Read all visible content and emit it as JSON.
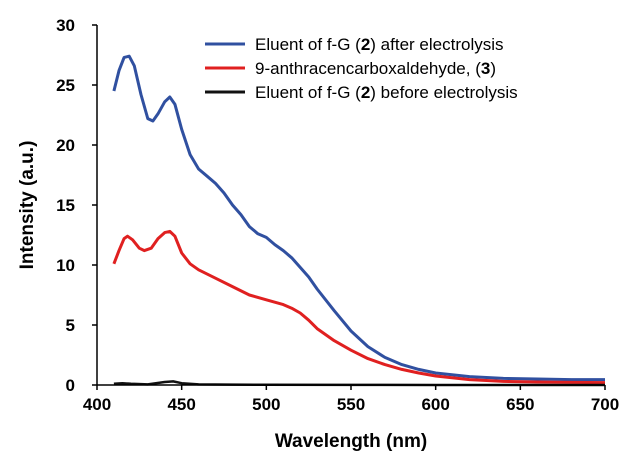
{
  "chart_data": {
    "type": "line",
    "xlabel": "Wavelength (nm)",
    "ylabel": "Intensity (a.u.)",
    "xlim": [
      400,
      700
    ],
    "ylim": [
      0,
      30
    ],
    "xticks": [
      400,
      450,
      500,
      550,
      600,
      650,
      700
    ],
    "yticks": [
      0,
      5,
      10,
      15,
      20,
      25,
      30
    ],
    "grid": false,
    "legend_position": "top-right",
    "series": [
      {
        "name_parts": [
          "Eluent of f-G (",
          "2",
          ") after electrolysis"
        ],
        "color": "#3050a0",
        "points": [
          [
            410,
            24.5
          ],
          [
            413,
            26.2
          ],
          [
            416,
            27.3
          ],
          [
            419,
            27.4
          ],
          [
            422,
            26.6
          ],
          [
            426,
            24.2
          ],
          [
            430,
            22.2
          ],
          [
            433,
            22.0
          ],
          [
            436,
            22.6
          ],
          [
            440,
            23.6
          ],
          [
            443,
            24.0
          ],
          [
            446,
            23.4
          ],
          [
            450,
            21.3
          ],
          [
            455,
            19.2
          ],
          [
            460,
            18.0
          ],
          [
            465,
            17.4
          ],
          [
            470,
            16.8
          ],
          [
            475,
            16.0
          ],
          [
            480,
            15.0
          ],
          [
            485,
            14.2
          ],
          [
            490,
            13.2
          ],
          [
            495,
            12.6
          ],
          [
            500,
            12.3
          ],
          [
            505,
            11.7
          ],
          [
            510,
            11.2
          ],
          [
            515,
            10.6
          ],
          [
            520,
            9.8
          ],
          [
            525,
            9.0
          ],
          [
            530,
            8.0
          ],
          [
            540,
            6.2
          ],
          [
            550,
            4.5
          ],
          [
            560,
            3.2
          ],
          [
            570,
            2.3
          ],
          [
            580,
            1.7
          ],
          [
            590,
            1.3
          ],
          [
            600,
            1.0
          ],
          [
            620,
            0.7
          ],
          [
            640,
            0.55
          ],
          [
            660,
            0.5
          ],
          [
            680,
            0.45
          ],
          [
            700,
            0.45
          ]
        ]
      },
      {
        "name_parts": [
          "9-anthracencarboxaldehyde, (",
          "3",
          ")"
        ],
        "color": "#e02020",
        "points": [
          [
            410,
            10.1
          ],
          [
            413,
            11.2
          ],
          [
            416,
            12.2
          ],
          [
            418,
            12.4
          ],
          [
            421,
            12.1
          ],
          [
            425,
            11.4
          ],
          [
            428,
            11.2
          ],
          [
            432,
            11.4
          ],
          [
            436,
            12.2
          ],
          [
            440,
            12.7
          ],
          [
            443,
            12.8
          ],
          [
            446,
            12.4
          ],
          [
            450,
            11.0
          ],
          [
            455,
            10.1
          ],
          [
            460,
            9.6
          ],
          [
            470,
            8.9
          ],
          [
            480,
            8.2
          ],
          [
            490,
            7.5
          ],
          [
            500,
            7.1
          ],
          [
            510,
            6.7
          ],
          [
            515,
            6.4
          ],
          [
            520,
            6.0
          ],
          [
            525,
            5.4
          ],
          [
            530,
            4.7
          ],
          [
            540,
            3.7
          ],
          [
            550,
            2.9
          ],
          [
            560,
            2.2
          ],
          [
            570,
            1.7
          ],
          [
            580,
            1.3
          ],
          [
            590,
            1.0
          ],
          [
            600,
            0.75
          ],
          [
            620,
            0.45
          ],
          [
            640,
            0.3
          ],
          [
            660,
            0.25
          ],
          [
            680,
            0.22
          ],
          [
            700,
            0.2
          ]
        ]
      },
      {
        "name_parts": [
          "Eluent of f-G (",
          "2",
          ") before electrolysis"
        ],
        "color": "#111111",
        "points": [
          [
            410,
            0.1
          ],
          [
            415,
            0.15
          ],
          [
            420,
            0.1
          ],
          [
            430,
            0.05
          ],
          [
            440,
            0.25
          ],
          [
            445,
            0.3
          ],
          [
            450,
            0.15
          ],
          [
            460,
            0.05
          ],
          [
            480,
            0.03
          ],
          [
            500,
            0.02
          ],
          [
            550,
            0.01
          ],
          [
            600,
            0.0
          ],
          [
            650,
            0.0
          ],
          [
            700,
            0.0
          ]
        ]
      }
    ]
  }
}
